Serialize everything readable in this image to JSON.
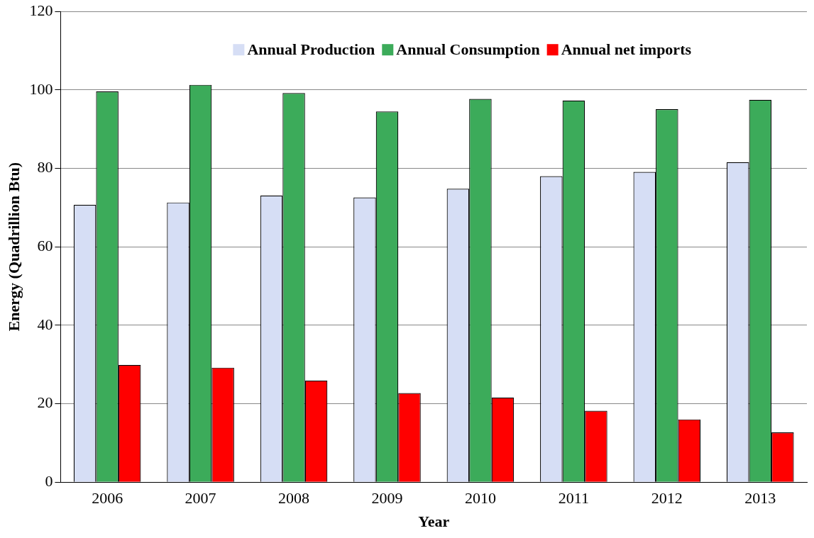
{
  "chart_data": {
    "type": "bar",
    "xlabel": "Year",
    "ylabel": "Energy (Quadrillion Btu)",
    "categories": [
      "2006",
      "2007",
      "2008",
      "2009",
      "2010",
      "2011",
      "2012",
      "2013"
    ],
    "series": [
      {
        "name": "Annual Production",
        "color": "#d6def5",
        "values": [
          70.7,
          71.3,
          73.1,
          72.6,
          74.8,
          78.0,
          79.1,
          81.6
        ]
      },
      {
        "name": "Annual Consumption",
        "color": "#3cab5a",
        "values": [
          99.6,
          101.3,
          99.2,
          94.5,
          97.7,
          97.3,
          95.1,
          97.5
        ]
      },
      {
        "name": "Annual net imports",
        "color": "#ff0000",
        "values": [
          29.9,
          29.2,
          25.9,
          22.7,
          21.6,
          18.2,
          16.0,
          12.7
        ]
      }
    ],
    "ylim": [
      0,
      120
    ],
    "yticks": [
      0,
      20,
      40,
      60,
      80,
      100,
      120
    ],
    "grid": "y",
    "legend": "top"
  }
}
